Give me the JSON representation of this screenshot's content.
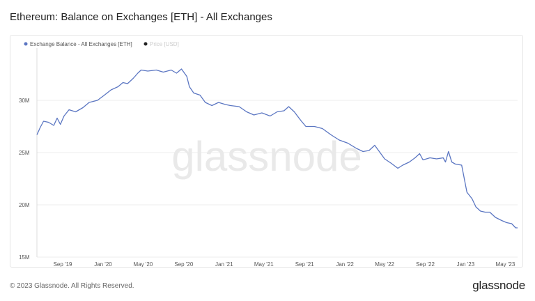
{
  "page": {
    "title": "Ethereum: Balance on Exchanges [ETH] - All Exchanges",
    "copyright": "© 2023 Glassnode. All Rights Reserved.",
    "brand": "glassnode",
    "watermark": "glassnode"
  },
  "colors": {
    "series": "#5b76c2",
    "price": "#222222",
    "price_legend_text": "#cccccc",
    "grid": "#ededed",
    "axis_text": "#555555",
    "watermark": "#e9e9e9"
  },
  "chart_data": {
    "type": "line",
    "title": "Ethereum: Balance on Exchanges [ETH] - All Exchanges",
    "xlabel": "",
    "ylabel": "",
    "legend_position": "top-left",
    "grid": true,
    "legend": [
      {
        "name": "Exchange Balance - All Exchanges [ETH]",
        "color": "#5b76c2"
      },
      {
        "name": "Price [USD]",
        "color": "#222222",
        "disabled": true
      }
    ],
    "x_ticks": [
      "Sep '19",
      "Jan '20",
      "May '20",
      "Sep '20",
      "Jan '21",
      "May '21",
      "Sep '21",
      "Jan '22",
      "May '22",
      "Sep '22",
      "Jan '23",
      "May '23"
    ],
    "y_ticks": [
      {
        "value": 15000000,
        "label": "15M"
      },
      {
        "value": 20000000,
        "label": "20M"
      },
      {
        "value": 25000000,
        "label": "25M"
      },
      {
        "value": 30000000,
        "label": "30M"
      }
    ],
    "ylim": [
      15000000,
      35000000
    ],
    "xlim": [
      "2019-06-15",
      "2023-06-07"
    ],
    "series": [
      {
        "name": "Exchange Balance - All Exchanges [ETH]",
        "points": [
          [
            "2019-06-15",
            26.7
          ],
          [
            "2019-06-25",
            27.4
          ],
          [
            "2019-07-05",
            28.0
          ],
          [
            "2019-07-20",
            27.9
          ],
          [
            "2019-08-05",
            27.6
          ],
          [
            "2019-08-15",
            28.3
          ],
          [
            "2019-08-25",
            27.7
          ],
          [
            "2019-09-05",
            28.5
          ],
          [
            "2019-09-20",
            29.1
          ],
          [
            "2019-10-10",
            28.9
          ],
          [
            "2019-11-01",
            29.3
          ],
          [
            "2019-11-20",
            29.8
          ],
          [
            "2019-12-15",
            30.0
          ],
          [
            "2020-01-05",
            30.5
          ],
          [
            "2020-01-25",
            31.0
          ],
          [
            "2020-02-15",
            31.3
          ],
          [
            "2020-03-01",
            31.7
          ],
          [
            "2020-03-15",
            31.6
          ],
          [
            "2020-04-01",
            32.1
          ],
          [
            "2020-04-15",
            32.6
          ],
          [
            "2020-04-25",
            32.9
          ],
          [
            "2020-05-15",
            32.8
          ],
          [
            "2020-06-10",
            32.9
          ],
          [
            "2020-07-01",
            32.7
          ],
          [
            "2020-07-25",
            32.9
          ],
          [
            "2020-08-10",
            32.6
          ],
          [
            "2020-08-25",
            33.0
          ],
          [
            "2020-09-10",
            32.3
          ],
          [
            "2020-09-18",
            31.3
          ],
          [
            "2020-10-01",
            30.7
          ],
          [
            "2020-10-20",
            30.5
          ],
          [
            "2020-11-05",
            29.8
          ],
          [
            "2020-11-25",
            29.5
          ],
          [
            "2020-12-15",
            29.8
          ],
          [
            "2021-01-05",
            29.6
          ],
          [
            "2021-01-20",
            29.5
          ],
          [
            "2021-02-15",
            29.4
          ],
          [
            "2021-03-10",
            28.9
          ],
          [
            "2021-04-01",
            28.6
          ],
          [
            "2021-04-25",
            28.8
          ],
          [
            "2021-05-20",
            28.5
          ],
          [
            "2021-06-10",
            28.9
          ],
          [
            "2021-07-01",
            29.0
          ],
          [
            "2021-07-15",
            29.4
          ],
          [
            "2021-08-01",
            28.9
          ],
          [
            "2021-08-20",
            28.1
          ],
          [
            "2021-09-05",
            27.5
          ],
          [
            "2021-10-01",
            27.5
          ],
          [
            "2021-10-25",
            27.3
          ],
          [
            "2021-11-20",
            26.7
          ],
          [
            "2021-12-15",
            26.2
          ],
          [
            "2022-01-10",
            25.9
          ],
          [
            "2022-02-05",
            25.4
          ],
          [
            "2022-02-25",
            25.1
          ],
          [
            "2022-03-15",
            25.2
          ],
          [
            "2022-04-01",
            25.7
          ],
          [
            "2022-04-15",
            25.1
          ],
          [
            "2022-05-01",
            24.4
          ],
          [
            "2022-05-20",
            24.0
          ],
          [
            "2022-06-10",
            23.5
          ],
          [
            "2022-06-25",
            23.8
          ],
          [
            "2022-07-15",
            24.1
          ],
          [
            "2022-08-01",
            24.5
          ],
          [
            "2022-08-15",
            24.9
          ],
          [
            "2022-08-25",
            24.3
          ],
          [
            "2022-09-15",
            24.5
          ],
          [
            "2022-10-05",
            24.4
          ],
          [
            "2022-10-25",
            24.5
          ],
          [
            "2022-11-01",
            24.1
          ],
          [
            "2022-11-10",
            25.1
          ],
          [
            "2022-11-20",
            24.1
          ],
          [
            "2022-12-01",
            23.9
          ],
          [
            "2022-12-20",
            23.8
          ],
          [
            "2022-12-28",
            22.5
          ],
          [
            "2023-01-05",
            21.2
          ],
          [
            "2023-01-20",
            20.6
          ],
          [
            "2023-02-01",
            19.8
          ],
          [
            "2023-02-15",
            19.4
          ],
          [
            "2023-03-01",
            19.3
          ],
          [
            "2023-03-15",
            19.3
          ],
          [
            "2023-04-01",
            18.8
          ],
          [
            "2023-04-20",
            18.5
          ],
          [
            "2023-05-05",
            18.3
          ],
          [
            "2023-05-20",
            18.2
          ],
          [
            "2023-06-01",
            17.8
          ],
          [
            "2023-06-07",
            17.8
          ]
        ],
        "unit": "M ETH"
      }
    ]
  }
}
